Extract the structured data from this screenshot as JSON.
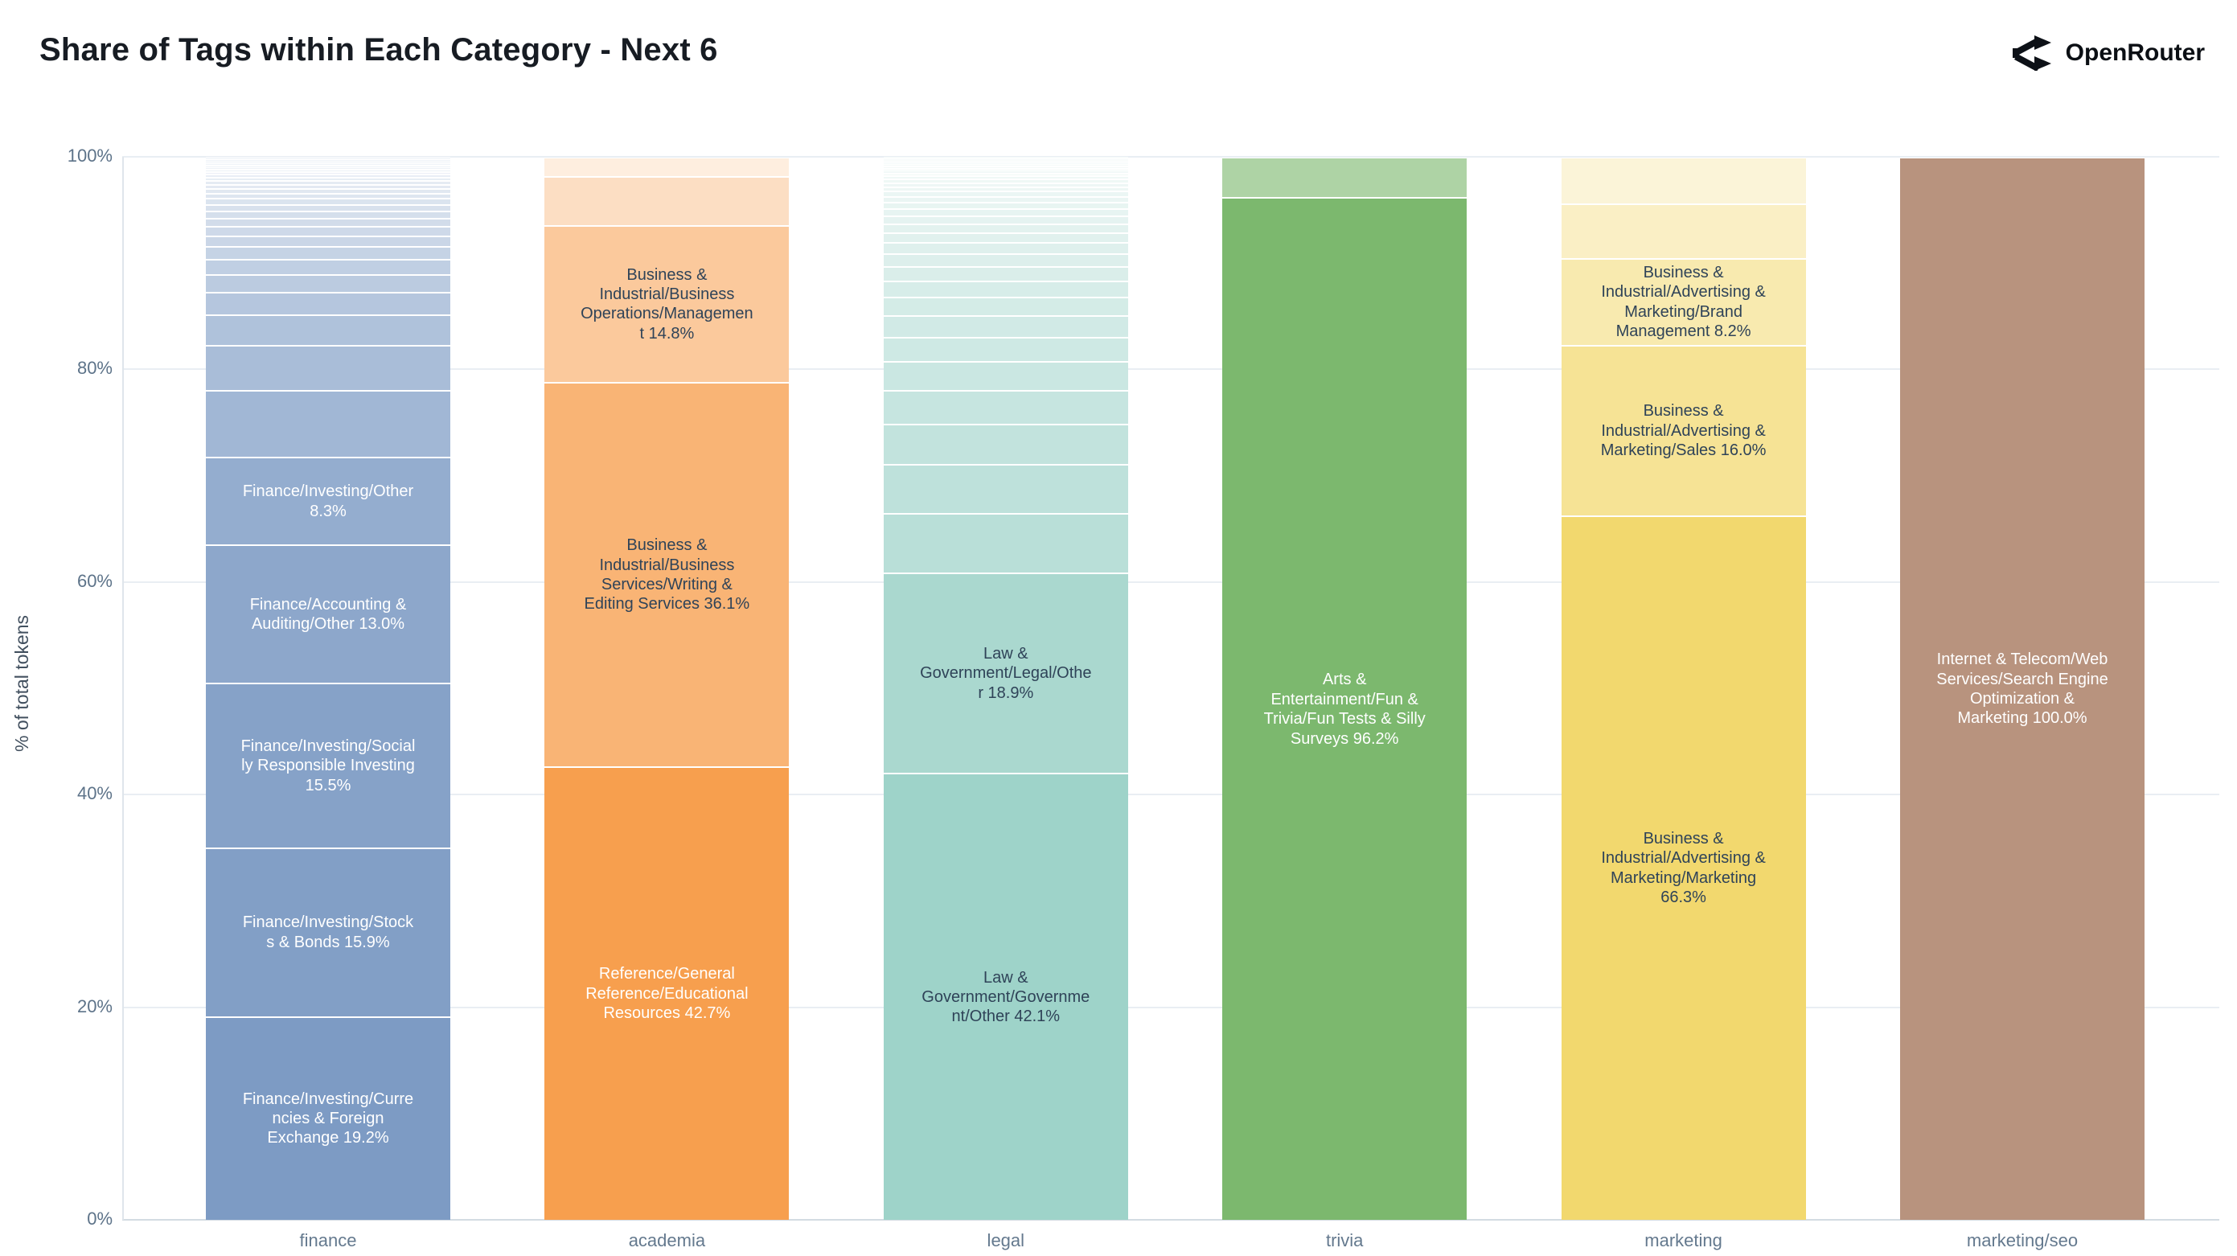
{
  "title": "Share of Tags within Each Category - Next 6",
  "logo": {
    "text": "OpenRouter"
  },
  "y_axis": {
    "title": "% of total tokens",
    "ticks": [
      "0%",
      "20%",
      "40%",
      "60%",
      "80%",
      "100%"
    ]
  },
  "text_colors": {
    "light": "#ffffff",
    "dark": "#2f4358"
  },
  "chart_data": {
    "type": "bar",
    "stacked": true,
    "orientation": "vertical",
    "ylabel": "% of total tokens",
    "ylim": [
      0,
      100
    ],
    "grid": true,
    "categories": [
      "finance",
      "academia",
      "legal",
      "trivia",
      "marketing",
      "marketing/seo"
    ],
    "bars": [
      {
        "category": "finance",
        "base_color": "#7d9bc4",
        "fade": [
          0.72,
          0.07
        ],
        "segments": [
          {
            "value": 19.2,
            "alpha": 1.0,
            "text": "light",
            "label": "Finance/Investing/Currencies & Foreign Exchange 19.2%"
          },
          {
            "value": 15.9,
            "alpha": 0.96,
            "text": "light",
            "label": "Finance/Investing/Stocks & Bonds 15.9%"
          },
          {
            "value": 15.5,
            "alpha": 0.93,
            "text": "light",
            "label": "Finance/Investing/Socially Responsible Investing 15.5%"
          },
          {
            "value": 13.0,
            "alpha": 0.88,
            "text": "light",
            "label": "Finance/Accounting & Auditing/Other 13.0%"
          },
          {
            "value": 8.3,
            "alpha": 0.82,
            "text": "light",
            "label": "Finance/Investing/Other 8.3%"
          },
          {
            "value": 6.3
          },
          {
            "value": 4.2
          },
          {
            "value": 2.9
          },
          {
            "value": 2.1
          },
          {
            "value": 1.7
          },
          {
            "value": 1.4
          },
          {
            "value": 1.2
          },
          {
            "value": 1.0
          },
          {
            "value": 0.9
          },
          {
            "value": 0.8
          },
          {
            "value": 0.7
          },
          {
            "value": 0.6
          },
          {
            "value": 0.55
          },
          {
            "value": 0.5
          },
          {
            "value": 0.45
          },
          {
            "value": 0.4
          },
          {
            "value": 0.35
          },
          {
            "value": 0.3
          },
          {
            "value": 0.28
          },
          {
            "value": 0.25
          },
          {
            "value": 0.22
          },
          {
            "value": 0.2
          },
          {
            "value": 0.18
          },
          {
            "value": 0.16
          },
          {
            "value": 0.14
          },
          {
            "value": 0.12
          },
          {
            "value": 0.1
          },
          {
            "value": 0.09
          },
          {
            "value": 0.08
          },
          {
            "value": 0.07
          }
        ]
      },
      {
        "category": "academia",
        "base_color": "#f79f4e",
        "fade": [
          0.34,
          0.18
        ],
        "segments": [
          {
            "value": 42.7,
            "alpha": 1.0,
            "text": "light",
            "label": "Reference/General Reference/Educational Resources 42.7%"
          },
          {
            "value": 36.1,
            "alpha": 0.78,
            "text": "dark",
            "label": "Business & Industrial/Business Services/Writing & Editing Services 36.1%"
          },
          {
            "value": 14.8,
            "alpha": 0.56,
            "text": "dark",
            "label": "Business & Industrial/Business Operations/Management 14.8%"
          },
          {
            "value": 4.6
          },
          {
            "value": 1.8
          }
        ]
      },
      {
        "category": "legal",
        "base_color": "#9ed3c9",
        "fade": [
          0.72,
          0.07
        ],
        "segments": [
          {
            "value": 42.1,
            "alpha": 1.0,
            "text": "dark",
            "label": "Law & Government/Government/Other 42.1%"
          },
          {
            "value": 18.9,
            "alpha": 0.88,
            "text": "dark",
            "label": "Law & Government/Legal/Other 18.9%"
          },
          {
            "value": 5.6
          },
          {
            "value": 4.6
          },
          {
            "value": 3.8
          },
          {
            "value": 3.2
          },
          {
            "value": 2.7
          },
          {
            "value": 2.3
          },
          {
            "value": 2.0
          },
          {
            "value": 1.75
          },
          {
            "value": 1.55
          },
          {
            "value": 1.35
          },
          {
            "value": 1.2
          },
          {
            "value": 1.05
          },
          {
            "value": 0.95
          },
          {
            "value": 0.85
          },
          {
            "value": 0.75
          },
          {
            "value": 0.68
          },
          {
            "value": 0.6
          },
          {
            "value": 0.54
          },
          {
            "value": 0.48
          },
          {
            "value": 0.43
          },
          {
            "value": 0.38
          },
          {
            "value": 0.34
          },
          {
            "value": 0.3
          },
          {
            "value": 0.27
          },
          {
            "value": 0.24
          },
          {
            "value": 0.21
          },
          {
            "value": 0.19
          },
          {
            "value": 0.17
          },
          {
            "value": 0.15
          },
          {
            "value": 0.13
          },
          {
            "value": 0.12
          },
          {
            "value": 0.1
          },
          {
            "value": 0.09
          },
          {
            "value": 0.08
          }
        ]
      },
      {
        "category": "trivia",
        "base_color": "#7cb86e",
        "fade": [
          0.62,
          0.62
        ],
        "segments": [
          {
            "value": 96.2,
            "alpha": 1.0,
            "text": "light",
            "label": "Arts & Entertainment/Fun & Trivia/Fun Tests & Silly Surveys 96.2%"
          },
          {
            "value": 3.8
          }
        ]
      },
      {
        "category": "marketing",
        "base_color": "#f2d86e",
        "fade": [
          0.4,
          0.27
        ],
        "segments": [
          {
            "value": 66.3,
            "alpha": 1.0,
            "text": "dark",
            "label": "Business & Industrial/Advertising & Marketing/Marketing 66.3%"
          },
          {
            "value": 16.0,
            "alpha": 0.73,
            "text": "dark",
            "label": "Business & Industrial/Advertising & Marketing/Sales 16.0%"
          },
          {
            "value": 8.2,
            "alpha": 0.55,
            "text": "dark",
            "label": "Business & Industrial/Advertising & Marketing/Brand Management 8.2%"
          },
          {
            "value": 5.1
          },
          {
            "value": 4.4
          }
        ]
      },
      {
        "category": "marketing/seo",
        "base_color": "#b8937e",
        "fade": [
          1.0,
          1.0
        ],
        "segments": [
          {
            "value": 100.0,
            "alpha": 1.0,
            "text": "light",
            "label": "Internet & Telecom/Web Services/Search Engine Optimization & Marketing 100.0%"
          }
        ]
      }
    ]
  }
}
